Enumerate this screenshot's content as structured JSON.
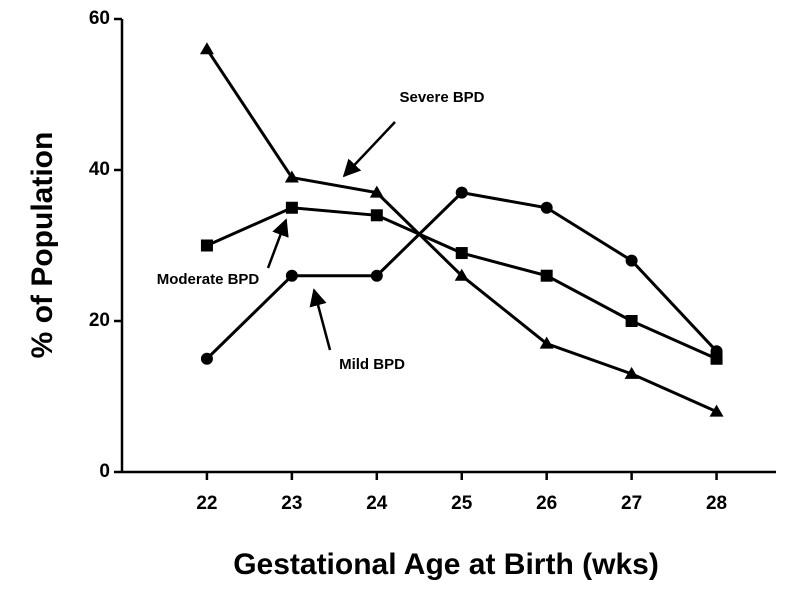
{
  "chart_data": {
    "type": "line",
    "x_label": "Gestational Age at Birth (wks)",
    "y_label": "% of Population",
    "x": [
      22,
      23,
      24,
      25,
      26,
      27,
      28
    ],
    "xlim": [
      21,
      28.7
    ],
    "xticks": [
      22,
      23,
      24,
      25,
      26,
      27,
      28
    ],
    "ylim": [
      0,
      60
    ],
    "yticks": [
      0,
      20,
      40,
      60
    ],
    "grid": false,
    "series": [
      {
        "name": "Severe BPD",
        "color": "#000000",
        "marker": "triangle",
        "values": [
          56,
          39,
          37,
          26,
          17,
          13,
          8
        ]
      },
      {
        "name": "Moderate BPD",
        "color": "#000000",
        "marker": "square",
        "values": [
          30,
          35,
          34,
          29,
          26,
          20,
          15
        ]
      },
      {
        "name": "Mild BPD",
        "color": "#000000",
        "marker": "circle",
        "values": [
          15,
          26,
          26,
          37,
          35,
          28,
          16
        ]
      }
    ]
  }
}
